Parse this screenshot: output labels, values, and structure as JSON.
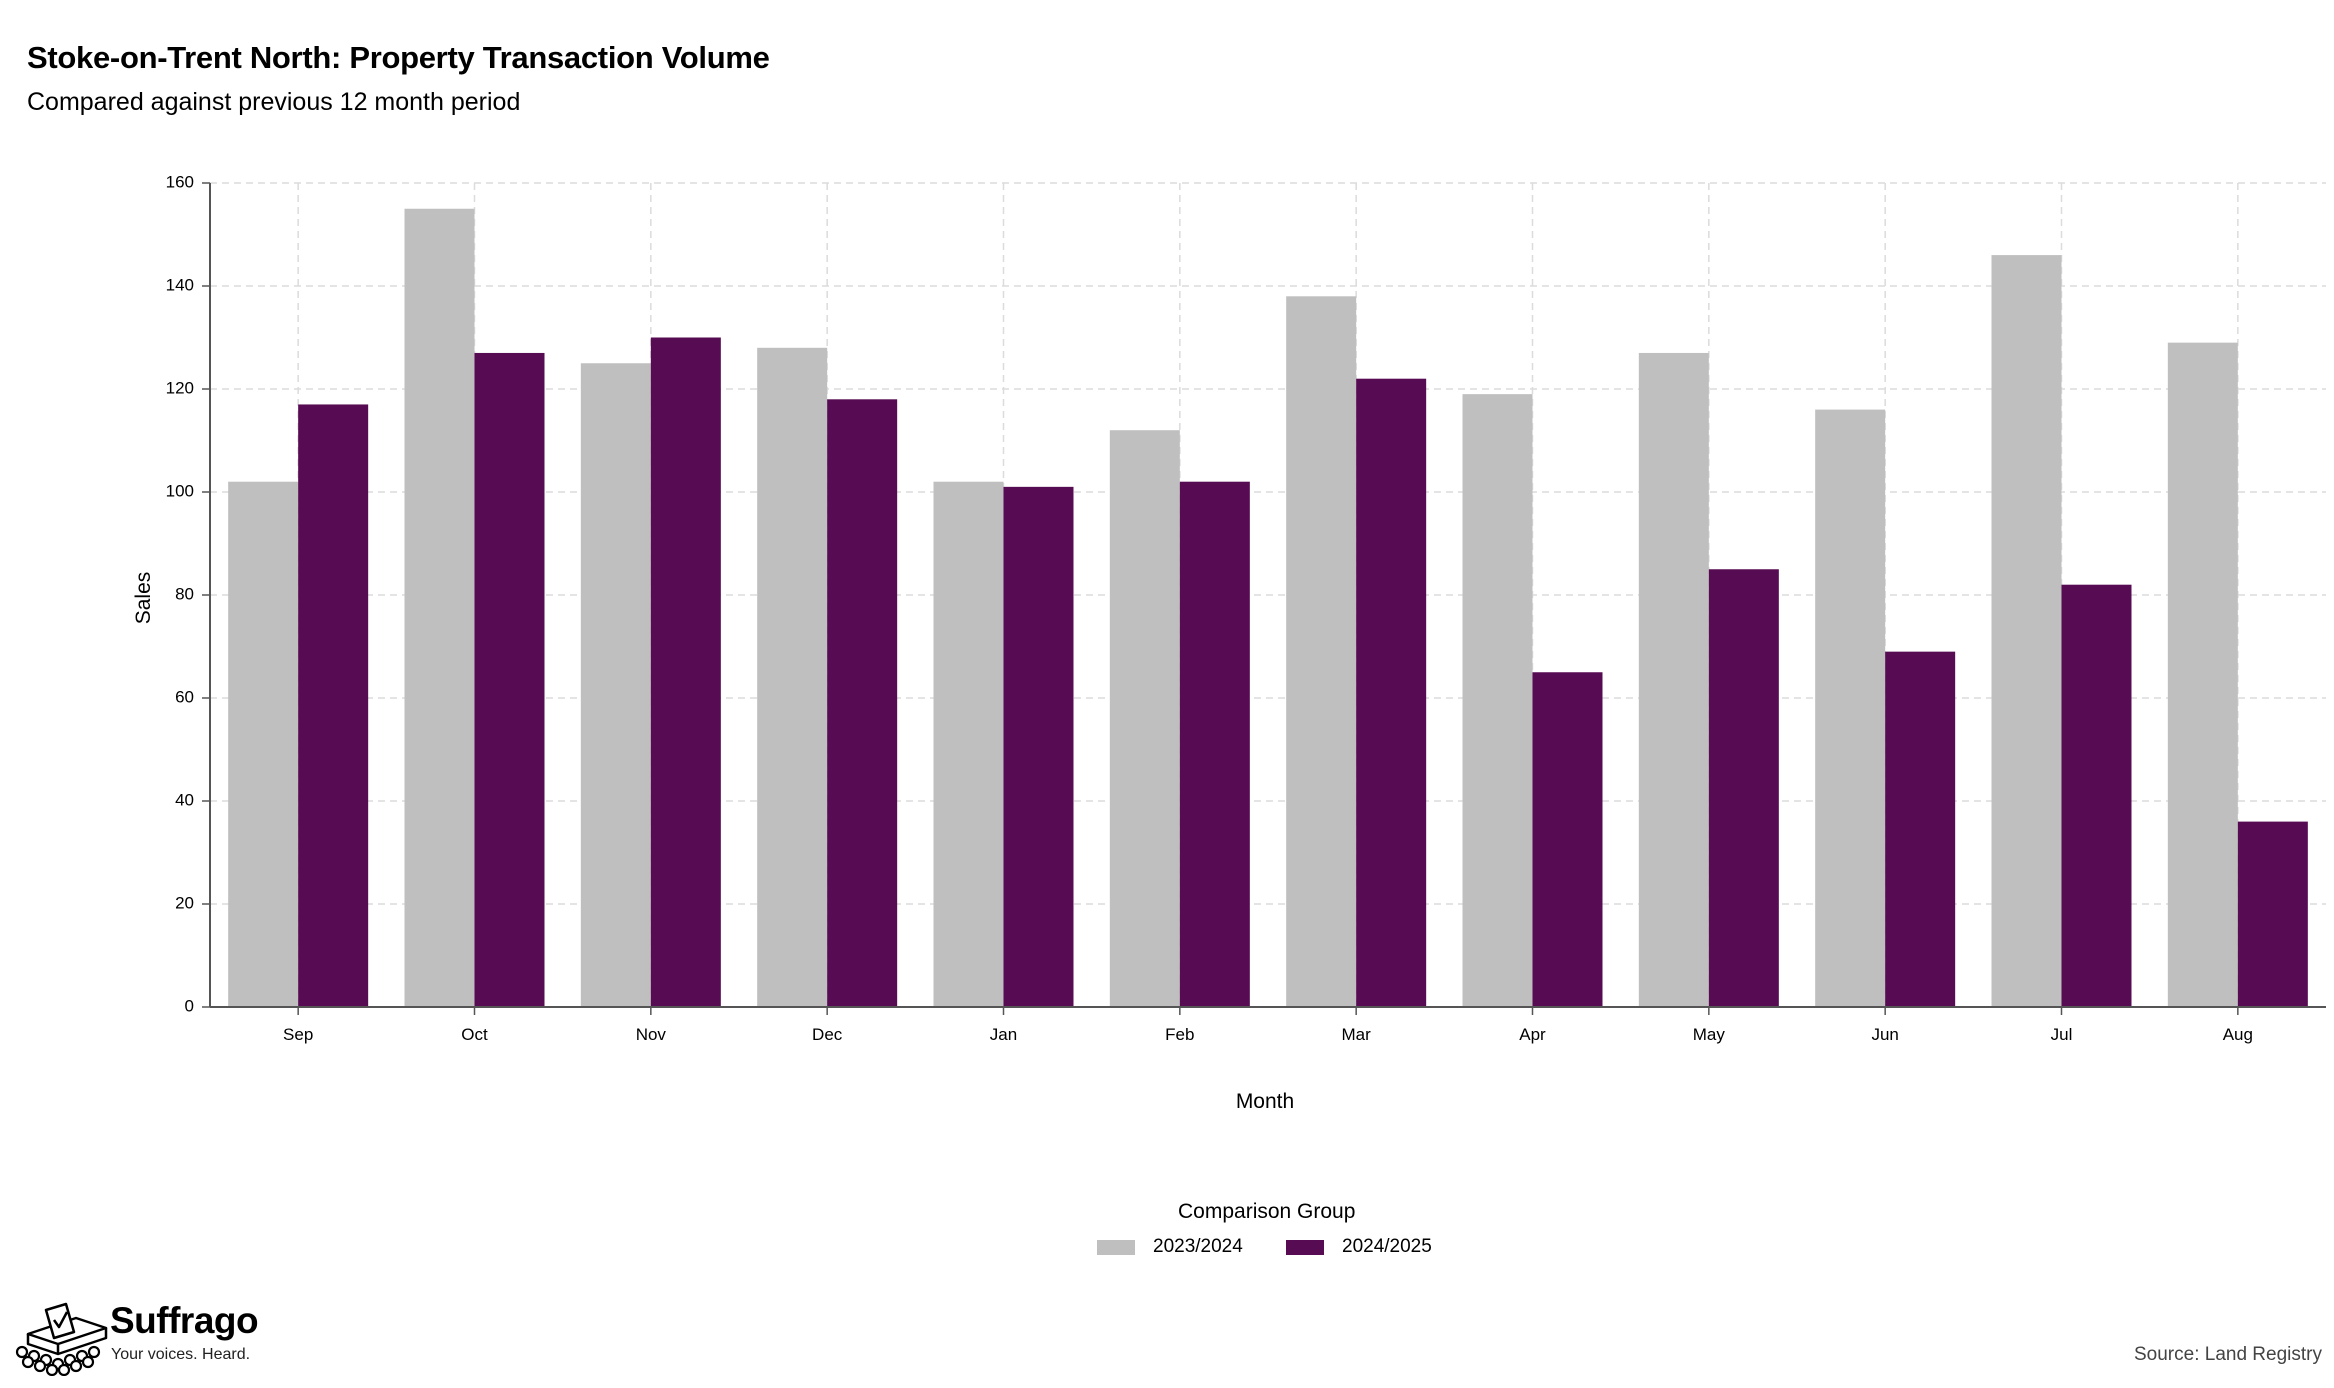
{
  "chart_data": {
    "type": "bar",
    "title": "Stoke-on-Trent North: Property Transaction Volume",
    "subtitle": "Compared against previous 12 month period",
    "xlabel": "Month",
    "ylabel": "Sales",
    "ylim": [
      0,
      160
    ],
    "yticks": [
      "0",
      "20",
      "40",
      "60",
      "80",
      "100",
      "120",
      "140",
      "160"
    ],
    "categories": [
      "Sep",
      "Oct",
      "Nov",
      "Dec",
      "Jan",
      "Feb",
      "Mar",
      "Apr",
      "May",
      "Jun",
      "Jul",
      "Aug"
    ],
    "series": [
      {
        "name": "2023/2024",
        "color": "#bfbfbf",
        "values": [
          102,
          155,
          125,
          128,
          102,
          112,
          138,
          119,
          127,
          116,
          146,
          129
        ]
      },
      {
        "name": "2024/2025",
        "color": "#560b52",
        "values": [
          117,
          127,
          130,
          118,
          101,
          102,
          122,
          65,
          85,
          69,
          82,
          36
        ]
      }
    ],
    "grid": true,
    "legend_title": "Comparison Group",
    "legend_position": "bottom"
  },
  "branding": {
    "name": "Suffrago",
    "tagline": "Your voices. Heard.",
    "logo_icon": "ballot-box-icon"
  },
  "source": "Source: Land Registry"
}
